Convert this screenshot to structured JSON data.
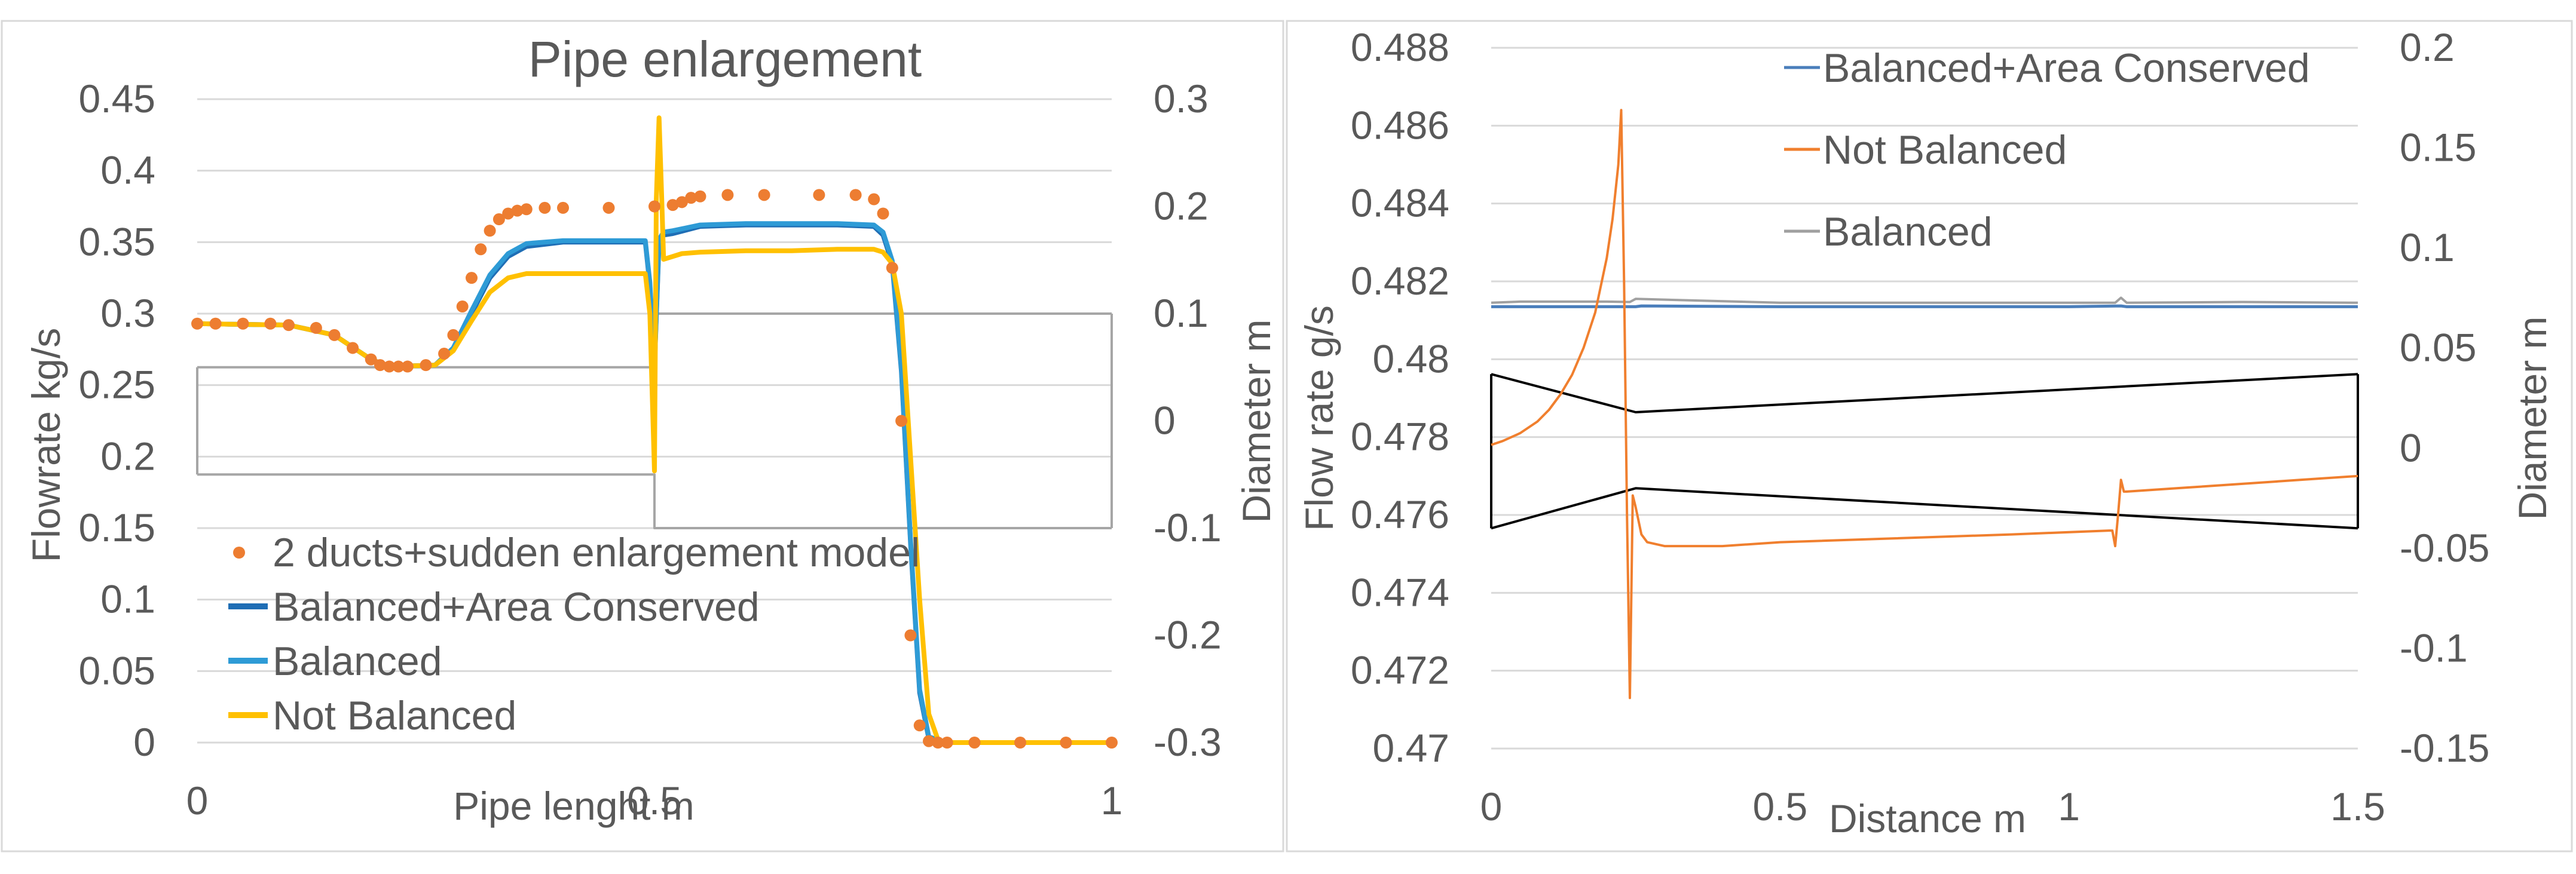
{
  "colors": {
    "model": "#ED7D31",
    "balanced_area": "#1F6EB5",
    "balanced": "#2E9BD6",
    "not_balanced": "#FFC000",
    "pipe": "#A6A6A6",
    "right_balanced_area": "#4A7EBB",
    "right_not_balanced": "#F07F2E",
    "right_balanced": "#A0A0A0",
    "right_pipe": "#000000"
  },
  "chart_data": [
    {
      "type": "line",
      "title": "Pipe enlargement",
      "xlabel": "Pipe lenght m",
      "ylabel": "Flowrate kg/s",
      "y2label": "Diameter m",
      "xlim": [
        0,
        1
      ],
      "ylim": [
        0,
        0.45
      ],
      "y2lim": [
        -0.3,
        0.3
      ],
      "xticks": [
        "0",
        "0.5",
        "1"
      ],
      "yticks": [
        "0",
        "0.05",
        "0.1",
        "0.15",
        "0.2",
        "0.25",
        "0.3",
        "0.35",
        "0.4",
        "0.45"
      ],
      "y2ticks": [
        "-0.3",
        "-0.2",
        "-0.1",
        "0",
        "0.1",
        "0.2",
        "0.3"
      ],
      "legend": [
        "2 ducts+sudden enlargement model",
        "Balanced+Area Conserved",
        "Balanced",
        "Not Balanced"
      ],
      "legend_position": "bottom-left",
      "series": [
        {
          "name": "2 ducts+sudden enlargement model",
          "style": "markers",
          "axis": "left",
          "x": [
            0.0,
            0.02,
            0.05,
            0.08,
            0.1,
            0.13,
            0.15,
            0.17,
            0.19,
            0.2,
            0.21,
            0.22,
            0.23,
            0.25,
            0.27,
            0.28,
            0.29,
            0.3,
            0.31,
            0.32,
            0.33,
            0.34,
            0.35,
            0.36,
            0.38,
            0.4,
            0.45,
            0.5,
            0.52,
            0.53,
            0.54,
            0.55,
            0.58,
            0.62,
            0.68,
            0.72,
            0.74,
            0.75,
            0.76,
            0.77,
            0.78,
            0.79,
            0.8,
            0.81,
            0.82,
            0.85,
            0.9,
            0.95,
            1.0
          ],
          "values": [
            0.293,
            0.293,
            0.293,
            0.293,
            0.292,
            0.29,
            0.285,
            0.276,
            0.268,
            0.264,
            0.263,
            0.263,
            0.263,
            0.264,
            0.272,
            0.285,
            0.305,
            0.325,
            0.345,
            0.358,
            0.366,
            0.37,
            0.372,
            0.373,
            0.374,
            0.374,
            0.374,
            0.375,
            0.376,
            0.378,
            0.381,
            0.382,
            0.383,
            0.383,
            0.383,
            0.383,
            0.38,
            0.37,
            0.332,
            0.225,
            0.075,
            0.012,
            0.001,
            0.0,
            0.0,
            0.0,
            0.0,
            0.0,
            0.0
          ]
        },
        {
          "name": "Balanced+Area Conserved",
          "axis": "left",
          "x": [
            0.0,
            0.1,
            0.15,
            0.19,
            0.21,
            0.26,
            0.28,
            0.3,
            0.32,
            0.34,
            0.36,
            0.4,
            0.45,
            0.49,
            0.495,
            0.5,
            0.505,
            0.51,
            0.52,
            0.55,
            0.6,
            0.65,
            0.7,
            0.74,
            0.75,
            0.76,
            0.77,
            0.78,
            0.79,
            0.8,
            0.82,
            0.9,
            1.0
          ],
          "values": [
            0.293,
            0.292,
            0.285,
            0.268,
            0.263,
            0.264,
            0.275,
            0.3,
            0.325,
            0.34,
            0.347,
            0.35,
            0.35,
            0.35,
            0.32,
            0.262,
            0.35,
            0.355,
            0.356,
            0.361,
            0.362,
            0.362,
            0.362,
            0.361,
            0.355,
            0.335,
            0.26,
            0.14,
            0.035,
            0.003,
            0.0,
            0.0,
            0.0
          ]
        },
        {
          "name": "Balanced",
          "axis": "left",
          "x": [
            0.0,
            0.1,
            0.15,
            0.19,
            0.21,
            0.26,
            0.28,
            0.3,
            0.32,
            0.34,
            0.36,
            0.4,
            0.45,
            0.49,
            0.495,
            0.5,
            0.505,
            0.51,
            0.52,
            0.55,
            0.6,
            0.65,
            0.7,
            0.74,
            0.75,
            0.76,
            0.77,
            0.78,
            0.79,
            0.8,
            0.82,
            0.9,
            1.0
          ],
          "values": [
            0.293,
            0.292,
            0.285,
            0.268,
            0.263,
            0.264,
            0.276,
            0.302,
            0.327,
            0.342,
            0.349,
            0.351,
            0.351,
            0.351,
            0.322,
            0.264,
            0.352,
            0.357,
            0.358,
            0.362,
            0.363,
            0.363,
            0.363,
            0.362,
            0.357,
            0.337,
            0.262,
            0.142,
            0.037,
            0.004,
            0.0,
            0.0,
            0.0
          ]
        },
        {
          "name": "Not Balanced",
          "axis": "left",
          "x": [
            0.0,
            0.1,
            0.15,
            0.19,
            0.21,
            0.26,
            0.28,
            0.3,
            0.32,
            0.34,
            0.36,
            0.4,
            0.45,
            0.49,
            0.495,
            0.5,
            0.502,
            0.505,
            0.508,
            0.51,
            0.52,
            0.53,
            0.55,
            0.6,
            0.65,
            0.7,
            0.74,
            0.75,
            0.76,
            0.77,
            0.78,
            0.79,
            0.8,
            0.81,
            0.82,
            0.9,
            1.0
          ],
          "values": [
            0.293,
            0.292,
            0.285,
            0.268,
            0.263,
            0.264,
            0.274,
            0.295,
            0.315,
            0.325,
            0.328,
            0.328,
            0.328,
            0.328,
            0.3,
            0.19,
            0.38,
            0.437,
            0.38,
            0.338,
            0.34,
            0.342,
            0.343,
            0.344,
            0.344,
            0.345,
            0.345,
            0.343,
            0.335,
            0.3,
            0.2,
            0.1,
            0.02,
            0.002,
            0.0,
            0.0,
            0.0
          ]
        },
        {
          "name": "Pipe diameter upper",
          "axis": "right",
          "legend": false,
          "x": [
            0.0,
            0.5,
            0.5,
            1.0
          ],
          "values": [
            0.05,
            0.05,
            0.1,
            0.1
          ]
        },
        {
          "name": "Pipe diameter lower",
          "axis": "right",
          "legend": false,
          "x": [
            0.0,
            0.5,
            0.5,
            1.0
          ],
          "values": [
            -0.05,
            -0.05,
            -0.1,
            -0.1
          ]
        }
      ]
    },
    {
      "type": "line",
      "title": "",
      "xlabel": "Distance m",
      "ylabel": "Flow rate g/s",
      "y2label": "Diameter m",
      "xlim": [
        0,
        1.5
      ],
      "ylim": [
        0.47,
        0.488
      ],
      "y2lim": [
        -0.15,
        0.2
      ],
      "xticks": [
        "0",
        "0.5",
        "1",
        "1.5"
      ],
      "yticks": [
        "0.47",
        "0.472",
        "0.474",
        "0.476",
        "0.478",
        "0.48",
        "0.482",
        "0.484",
        "0.486",
        "0.488"
      ],
      "y2ticks": [
        "-0.15",
        "-0.1",
        "-0.05",
        "0",
        "0.05",
        "0.1",
        "0.15",
        "0.2"
      ],
      "legend": [
        "Balanced+Area Conserved",
        "Not Balanced",
        "Balanced"
      ],
      "legend_position": "top",
      "series": [
        {
          "name": "Balanced+Area Conserved",
          "axis": "left",
          "x": [
            0.0,
            0.25,
            0.26,
            0.5,
            1.0,
            1.09,
            1.1,
            1.5
          ],
          "values": [
            0.48135,
            0.48135,
            0.48137,
            0.48135,
            0.48135,
            0.48137,
            0.48135,
            0.48135
          ]
        },
        {
          "name": "Balanced",
          "axis": "left",
          "x": [
            0.0,
            0.05,
            0.2,
            0.24,
            0.25,
            0.5,
            1.0,
            1.08,
            1.09,
            1.1,
            1.3,
            1.5
          ],
          "values": [
            0.48145,
            0.48148,
            0.48148,
            0.48147,
            0.48155,
            0.48145,
            0.48145,
            0.48145,
            0.48158,
            0.48145,
            0.48147,
            0.48145
          ]
        },
        {
          "name": "Not Balanced",
          "axis": "left",
          "x": [
            0.0,
            0.02,
            0.05,
            0.08,
            0.1,
            0.12,
            0.14,
            0.16,
            0.18,
            0.2,
            0.21,
            0.22,
            0.225,
            0.23,
            0.235,
            0.24,
            0.245,
            0.25,
            0.26,
            0.27,
            0.3,
            0.4,
            0.5,
            0.7,
            0.9,
            1.07,
            1.075,
            1.08,
            1.085,
            1.09,
            1.095,
            1.1,
            1.2,
            1.3,
            1.4,
            1.5
          ],
          "values": [
            0.4778,
            0.4779,
            0.4781,
            0.4784,
            0.4787,
            0.4791,
            0.4796,
            0.4803,
            0.4812,
            0.4826,
            0.4836,
            0.485,
            0.4864,
            0.482,
            0.476,
            0.4713,
            0.4765,
            0.4762,
            0.4755,
            0.4753,
            0.4752,
            0.4752,
            0.4753,
            0.4754,
            0.4755,
            0.4756,
            0.4756,
            0.4752,
            0.476,
            0.4769,
            0.4766,
            0.4766,
            0.4767,
            0.4768,
            0.4769,
            0.477
          ]
        },
        {
          "name": "Pipe diameter upper",
          "axis": "right",
          "legend": false,
          "x": [
            0.0,
            0.25,
            1.5
          ],
          "values": [
            0.037,
            0.018,
            0.037
          ]
        },
        {
          "name": "Pipe diameter lower",
          "axis": "right",
          "legend": false,
          "x": [
            0.0,
            0.25,
            1.5
          ],
          "values": [
            -0.04,
            -0.02,
            -0.04
          ]
        }
      ]
    }
  ]
}
